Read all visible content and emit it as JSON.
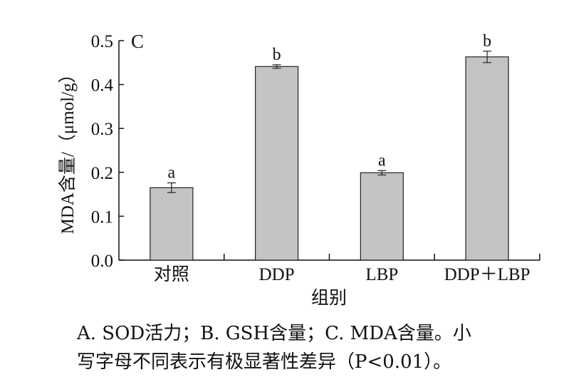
{
  "chart_data": {
    "type": "bar",
    "panel_label": "C",
    "categories": [
      "对照",
      "DDP",
      "LBP",
      "DDP＋LBP"
    ],
    "values": [
      0.165,
      0.441,
      0.199,
      0.463
    ],
    "errors": [
      0.011,
      0.004,
      0.005,
      0.013
    ],
    "significance": [
      "a",
      "b",
      "a",
      "b"
    ],
    "xlabel": "组别",
    "ylabel": "MDA含量/（μmol/g）",
    "ylim": [
      0.0,
      0.5
    ],
    "yticks": [
      "0.0",
      "0.1",
      "0.2",
      "0.3",
      "0.4",
      "0.5"
    ],
    "bar_color": "#c4c4c4",
    "grid": false
  },
  "caption": {
    "line1": "A. SOD活力；B. GSH含量；C. MDA含量。小",
    "line2": "写字母不同表示有极显著性差异（P<0.01）。"
  }
}
